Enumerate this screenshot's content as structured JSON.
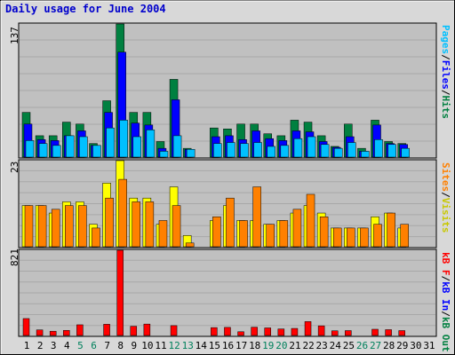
{
  "title": "Daily usage for June 2004",
  "colors": {
    "background": "#d8d8d8",
    "plot_bg": "#c0c0c0",
    "hits": "#008040",
    "files": "#0000ff",
    "pages": "#00c0ff",
    "visits": "#ffff00",
    "sites": "#ff8000",
    "kbytes": "#ff0000",
    "title": "#0000cc",
    "weekend_day": "#00805c"
  },
  "legend": {
    "top": {
      "pages": "Pages",
      "sep1": "/",
      "files": "Files",
      "sep2": "/",
      "hits": "Hits"
    },
    "middle": {
      "sites": "Sites",
      "sep": "/",
      "visits": "Visits"
    },
    "bottom": {
      "kbf": "kB F",
      "sep1": "/",
      "kbin": "kB In",
      "sep2": "/",
      "kbout": "kB Out"
    }
  },
  "chart_data": {
    "type": "bar",
    "title": "Daily usage for June 2004",
    "categories": [
      "1",
      "2",
      "3",
      "4",
      "5",
      "6",
      "7",
      "8",
      "9",
      "10",
      "11",
      "12",
      "13",
      "14",
      "15",
      "16",
      "17",
      "18",
      "19",
      "20",
      "21",
      "22",
      "23",
      "24",
      "25",
      "26",
      "27",
      "28",
      "29",
      "30",
      "31"
    ],
    "weekend_days": [
      "5",
      "6",
      "12",
      "13",
      "19",
      "20",
      "26",
      "27"
    ],
    "panels": [
      {
        "name": "hits-files-pages",
        "ymax_label": "137",
        "ylim": [
          0,
          137
        ],
        "series": [
          {
            "name": "Hits",
            "values": [
              46,
              22,
              22,
              36,
              34,
              14,
              58,
              137,
              46,
              46,
              16,
              80,
              9,
              0,
              30,
              29,
              34,
              34,
              24,
              22,
              38,
              36,
              22,
              11,
              34,
              9,
              38,
              16,
              14,
              0,
              0
            ]
          },
          {
            "name": "Files",
            "values": [
              34,
              18,
              17,
              22,
              27,
              12,
              46,
              108,
              35,
              33,
              9,
              59,
              8,
              0,
              21,
              22,
              18,
              27,
              19,
              17,
              27,
              26,
              16,
              10,
              21,
              6,
              33,
              14,
              13,
              0,
              0
            ]
          },
          {
            "name": "Pages",
            "values": [
              17,
              14,
              12,
              22,
              21,
              12,
              30,
              38,
              21,
              28,
              6,
              22,
              8,
              0,
              14,
              15,
              14,
              15,
              11,
              12,
              19,
              21,
              13,
              9,
              15,
              6,
              18,
              13,
              9,
              0,
              0
            ]
          }
        ]
      },
      {
        "name": "visits-sites",
        "ymax_label": "23",
        "ylim": [
          0,
          23
        ],
        "series": [
          {
            "name": "Visits",
            "values": [
              11,
              11,
              9,
              12,
              12,
              6,
              17,
              23,
              13,
              13,
              6,
              16,
              3,
              0,
              7,
              11,
              7,
              7,
              6,
              7,
              9,
              11,
              9,
              5,
              5,
              5,
              8,
              9,
              5,
              0,
              0
            ]
          },
          {
            "name": "Sites",
            "values": [
              11,
              11,
              10,
              11,
              11,
              5,
              13,
              18,
              12,
              12,
              7,
              11,
              1,
              0,
              8,
              13,
              7,
              16,
              6,
              7,
              10,
              14,
              8,
              5,
              5,
              5,
              6,
              9,
              6,
              0,
              0
            ]
          }
        ]
      },
      {
        "name": "kbytes",
        "ymax_label": "821",
        "ylim": [
          0,
          821
        ],
        "series": [
          {
            "name": "kB F",
            "values": [
              163,
              54,
              41,
              49,
              103,
              0,
              108,
              821,
              89,
              110,
              0,
              95,
              0,
              0,
              76,
              78,
              36,
              80,
              73,
              63,
              68,
              134,
              93,
              45,
              47,
              0,
              60,
              56,
              47,
              0,
              0
            ]
          }
        ]
      }
    ]
  }
}
